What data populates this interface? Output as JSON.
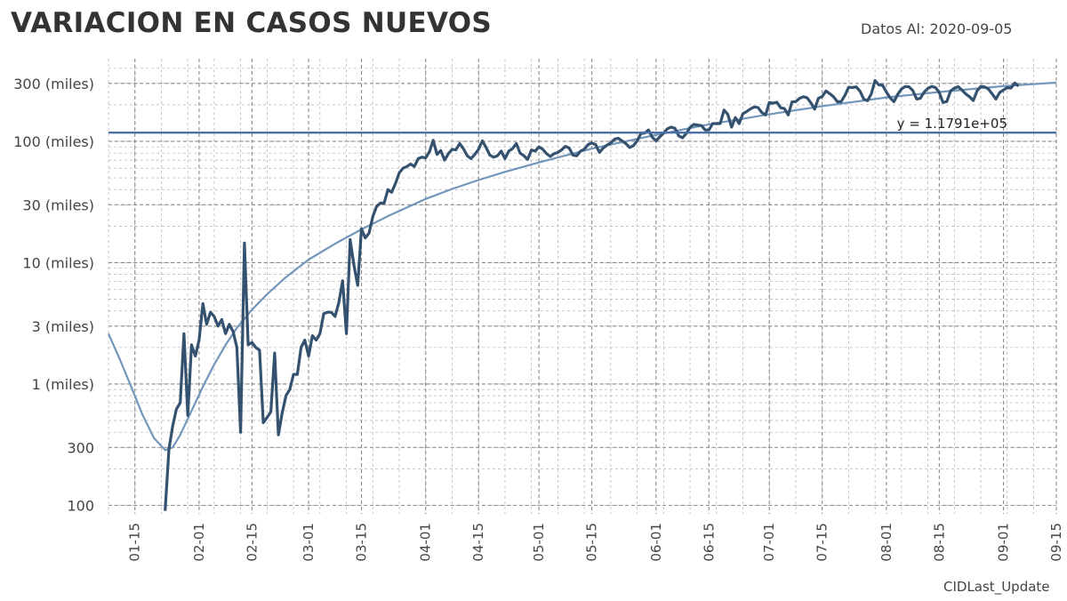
{
  "title": "VARIACION EN CASOS NUEVOS",
  "date_note": "Datos Al: 2020-09-05",
  "footer": "CIDLast_Update",
  "colors": {
    "series": "#34526f",
    "trend": "#7396bb",
    "hline": "#4a70a4",
    "grid": "#b0b0b0"
  },
  "chart_data": {
    "type": "line",
    "title": "VARIACION EN CASOS NUEVOS",
    "yscale": "log",
    "ylim": [
      85,
      480000
    ],
    "xlim": [
      "2020-01-08",
      "2020-09-15"
    ],
    "y_ticks": [
      {
        "value": 100,
        "label": "100"
      },
      {
        "value": 300,
        "label": "300"
      },
      {
        "value": 1000,
        "label": "1 (miles)"
      },
      {
        "value": 3000,
        "label": "3 (miles)"
      },
      {
        "value": 10000,
        "label": "10 (miles)"
      },
      {
        "value": 30000,
        "label": "30 (miles)"
      },
      {
        "value": 100000,
        "label": "100 (miles)"
      },
      {
        "value": 300000,
        "label": "300 (miles)"
      }
    ],
    "x_ticks": [
      "01-15",
      "02-01",
      "02-15",
      "03-01",
      "03-15",
      "04-01",
      "04-15",
      "05-01",
      "05-15",
      "06-01",
      "06-15",
      "07-01",
      "07-15",
      "08-01",
      "08-15",
      "09-01",
      "09-15"
    ],
    "x_tick_dates": [
      "2020-01-15",
      "2020-02-01",
      "2020-02-15",
      "2020-03-01",
      "2020-03-15",
      "2020-04-01",
      "2020-04-15",
      "2020-05-01",
      "2020-05-15",
      "2020-06-01",
      "2020-06-15",
      "2020-07-01",
      "2020-07-15",
      "2020-08-01",
      "2020-08-15",
      "2020-09-01",
      "2020-09-15"
    ],
    "hline": {
      "y": 117910,
      "label": "y = 1.1791e+05"
    },
    "series": [
      {
        "points": [
          [
            "2020-01-23",
            90
          ],
          [
            "2020-01-24",
            290
          ],
          [
            "2020-01-25",
            450
          ],
          [
            "2020-01-26",
            620
          ],
          [
            "2020-01-27",
            700
          ],
          [
            "2020-01-28",
            2600
          ],
          [
            "2020-01-29",
            550
          ],
          [
            "2020-01-30",
            2100
          ],
          [
            "2020-01-31",
            1700
          ],
          [
            "2020-02-01",
            2300
          ],
          [
            "2020-02-02",
            4600
          ],
          [
            "2020-02-03",
            3100
          ],
          [
            "2020-02-04",
            3900
          ],
          [
            "2020-02-05",
            3600
          ],
          [
            "2020-02-06",
            3000
          ],
          [
            "2020-02-07",
            3400
          ],
          [
            "2020-02-08",
            2600
          ],
          [
            "2020-02-09",
            3100
          ],
          [
            "2020-02-10",
            2700
          ],
          [
            "2020-02-11",
            2000
          ],
          [
            "2020-02-12",
            400
          ],
          [
            "2020-02-13",
            14500
          ],
          [
            "2020-02-14",
            2100
          ],
          [
            "2020-02-15",
            2200
          ],
          [
            "2020-02-16",
            2000
          ],
          [
            "2020-02-17",
            1900
          ],
          [
            "2020-02-18",
            480
          ],
          [
            "2020-02-19",
            530
          ],
          [
            "2020-02-20",
            590
          ],
          [
            "2020-02-21",
            1800
          ],
          [
            "2020-02-22",
            380
          ],
          [
            "2020-02-23",
            580
          ],
          [
            "2020-02-24",
            800
          ],
          [
            "2020-02-25",
            900
          ],
          [
            "2020-02-26",
            1200
          ],
          [
            "2020-02-27",
            1200
          ],
          [
            "2020-02-28",
            2000
          ],
          [
            "2020-02-29",
            2300
          ],
          [
            "2020-03-01",
            1700
          ],
          [
            "2020-03-02",
            2500
          ],
          [
            "2020-03-03",
            2300
          ],
          [
            "2020-03-04",
            2600
          ],
          [
            "2020-03-05",
            3800
          ],
          [
            "2020-03-06",
            3900
          ],
          [
            "2020-03-07",
            3900
          ],
          [
            "2020-03-08",
            3600
          ],
          [
            "2020-03-09",
            4700
          ],
          [
            "2020-03-10",
            7100
          ],
          [
            "2020-03-11",
            2600
          ],
          [
            "2020-03-12",
            15500
          ],
          [
            "2020-03-13",
            9500
          ],
          [
            "2020-03-14",
            6500
          ],
          [
            "2020-03-15",
            19000
          ],
          [
            "2020-03-16",
            16000
          ],
          [
            "2020-03-17",
            17500
          ],
          [
            "2020-03-18",
            24000
          ],
          [
            "2020-03-19",
            29000
          ],
          [
            "2020-03-20",
            31000
          ],
          [
            "2020-03-21",
            31000
          ],
          [
            "2020-03-22",
            40000
          ],
          [
            "2020-03-23",
            38000
          ],
          [
            "2020-03-24",
            45000
          ],
          [
            "2020-03-25",
            55000
          ],
          [
            "2020-03-26",
            60000
          ],
          [
            "2020-03-27",
            62000
          ],
          [
            "2020-03-28",
            65000
          ],
          [
            "2020-03-29",
            62000
          ],
          [
            "2020-03-30",
            72000
          ],
          [
            "2020-03-31",
            74000
          ],
          [
            "2020-04-01",
            73000
          ],
          [
            "2020-04-02",
            82000
          ],
          [
            "2020-04-03",
            102000
          ],
          [
            "2020-04-04",
            78000
          ],
          [
            "2020-04-05",
            84000
          ],
          [
            "2020-04-06",
            70000
          ],
          [
            "2020-04-07",
            79000
          ],
          [
            "2020-04-08",
            86000
          ],
          [
            "2020-04-09",
            85000
          ],
          [
            "2020-04-10",
            96000
          ],
          [
            "2020-04-11",
            87000
          ],
          [
            "2020-04-12",
            76000
          ],
          [
            "2020-04-13",
            72000
          ],
          [
            "2020-04-14",
            78000
          ],
          [
            "2020-04-15",
            86000
          ],
          [
            "2020-04-16",
            101000
          ],
          [
            "2020-04-17",
            89000
          ],
          [
            "2020-04-18",
            77000
          ],
          [
            "2020-04-19",
            74000
          ],
          [
            "2020-04-20",
            76000
          ],
          [
            "2020-04-21",
            83000
          ],
          [
            "2020-04-22",
            72000
          ],
          [
            "2020-04-23",
            83000
          ],
          [
            "2020-04-24",
            87000
          ],
          [
            "2020-04-25",
            96000
          ],
          [
            "2020-04-26",
            80000
          ],
          [
            "2020-04-27",
            76000
          ],
          [
            "2020-04-28",
            71000
          ],
          [
            "2020-04-29",
            85000
          ],
          [
            "2020-04-30",
            83000
          ],
          [
            "2020-05-01",
            90000
          ],
          [
            "2020-05-02",
            86000
          ],
          [
            "2020-05-03",
            79000
          ],
          [
            "2020-05-04",
            75000
          ],
          [
            "2020-05-05",
            79000
          ],
          [
            "2020-05-06",
            81000
          ],
          [
            "2020-05-07",
            85000
          ],
          [
            "2020-05-08",
            91000
          ],
          [
            "2020-05-09",
            88000
          ],
          [
            "2020-05-10",
            77000
          ],
          [
            "2020-05-11",
            76000
          ],
          [
            "2020-05-12",
            83000
          ],
          [
            "2020-05-13",
            86000
          ],
          [
            "2020-05-14",
            94000
          ],
          [
            "2020-05-15",
            97000
          ],
          [
            "2020-05-16",
            94000
          ],
          [
            "2020-05-17",
            81000
          ],
          [
            "2020-05-18",
            88000
          ],
          [
            "2020-05-19",
            93000
          ],
          [
            "2020-05-20",
            97000
          ],
          [
            "2020-05-21",
            104000
          ],
          [
            "2020-05-22",
            106000
          ],
          [
            "2020-05-23",
            101000
          ],
          [
            "2020-05-24",
            96000
          ],
          [
            "2020-05-25",
            89000
          ],
          [
            "2020-05-26",
            92000
          ],
          [
            "2020-05-27",
            101000
          ],
          [
            "2020-05-28",
            116000
          ],
          [
            "2020-05-29",
            117000
          ],
          [
            "2020-05-30",
            124000
          ],
          [
            "2020-05-31",
            108000
          ],
          [
            "2020-06-01",
            101000
          ],
          [
            "2020-06-02",
            109000
          ],
          [
            "2020-06-03",
            117000
          ],
          [
            "2020-06-04",
            127000
          ],
          [
            "2020-06-05",
            131000
          ],
          [
            "2020-06-06",
            128000
          ],
          [
            "2020-06-07",
            111000
          ],
          [
            "2020-06-08",
            107000
          ],
          [
            "2020-06-09",
            116000
          ],
          [
            "2020-06-10",
            130000
          ],
          [
            "2020-06-11",
            138000
          ],
          [
            "2020-06-12",
            136000
          ],
          [
            "2020-06-13",
            135000
          ],
          [
            "2020-06-14",
            124000
          ],
          [
            "2020-06-15",
            124000
          ],
          [
            "2020-06-16",
            140000
          ],
          [
            "2020-06-17",
            140000
          ],
          [
            "2020-06-18",
            140000
          ],
          [
            "2020-06-19",
            181000
          ],
          [
            "2020-06-20",
            167000
          ],
          [
            "2020-06-21",
            131000
          ],
          [
            "2020-06-22",
            157000
          ],
          [
            "2020-06-23",
            140000
          ],
          [
            "2020-06-24",
            169000
          ],
          [
            "2020-06-25",
            176000
          ],
          [
            "2020-06-26",
            185000
          ],
          [
            "2020-06-27",
            192000
          ],
          [
            "2020-06-28",
            190000
          ],
          [
            "2020-06-29",
            173000
          ],
          [
            "2020-06-30",
            165000
          ],
          [
            "2020-07-01",
            209000
          ],
          [
            "2020-07-02",
            206000
          ],
          [
            "2020-07-03",
            210000
          ],
          [
            "2020-07-04",
            189000
          ],
          [
            "2020-07-05",
            186000
          ],
          [
            "2020-07-06",
            165000
          ],
          [
            "2020-07-07",
            211000
          ],
          [
            "2020-07-08",
            213000
          ],
          [
            "2020-07-09",
            226000
          ],
          [
            "2020-07-10",
            233000
          ],
          [
            "2020-07-11",
            229000
          ],
          [
            "2020-07-12",
            208000
          ],
          [
            "2020-07-13",
            184000
          ],
          [
            "2020-07-14",
            226000
          ],
          [
            "2020-07-15",
            234000
          ],
          [
            "2020-07-16",
            260000
          ],
          [
            "2020-07-17",
            247000
          ],
          [
            "2020-07-18",
            233000
          ],
          [
            "2020-07-19",
            212000
          ],
          [
            "2020-07-20",
            212000
          ],
          [
            "2020-07-21",
            239000
          ],
          [
            "2020-07-22",
            279000
          ],
          [
            "2020-07-23",
            278000
          ],
          [
            "2020-07-24",
            281000
          ],
          [
            "2020-07-25",
            259000
          ],
          [
            "2020-07-26",
            223000
          ],
          [
            "2020-07-27",
            216000
          ],
          [
            "2020-07-28",
            246000
          ],
          [
            "2020-07-29",
            317000
          ],
          [
            "2020-07-30",
            292000
          ],
          [
            "2020-07-31",
            290000
          ],
          [
            "2020-08-01",
            255000
          ],
          [
            "2020-08-02",
            228000
          ],
          [
            "2020-08-03",
            212000
          ],
          [
            "2020-08-04",
            244000
          ],
          [
            "2020-08-05",
            270000
          ],
          [
            "2020-08-06",
            283000
          ],
          [
            "2020-08-07",
            281000
          ],
          [
            "2020-08-08",
            262000
          ],
          [
            "2020-08-09",
            223000
          ],
          [
            "2020-08-10",
            226000
          ],
          [
            "2020-08-11",
            255000
          ],
          [
            "2020-08-12",
            273000
          ],
          [
            "2020-08-13",
            283000
          ],
          [
            "2020-08-14",
            278000
          ],
          [
            "2020-08-15",
            253000
          ],
          [
            "2020-08-16",
            209000
          ],
          [
            "2020-08-17",
            213000
          ],
          [
            "2020-08-18",
            260000
          ],
          [
            "2020-08-19",
            274000
          ],
          [
            "2020-08-20",
            282000
          ],
          [
            "2020-08-21",
            265000
          ],
          [
            "2020-08-22",
            246000
          ],
          [
            "2020-08-23",
            233000
          ],
          [
            "2020-08-24",
            217000
          ],
          [
            "2020-08-25",
            260000
          ],
          [
            "2020-08-26",
            284000
          ],
          [
            "2020-08-27",
            281000
          ],
          [
            "2020-08-28",
            270000
          ],
          [
            "2020-08-29",
            246000
          ],
          [
            "2020-08-30",
            223000
          ],
          [
            "2020-08-31",
            253000
          ],
          [
            "2020-09-01",
            265000
          ],
          [
            "2020-09-02",
            277000
          ],
          [
            "2020-09-03",
            275000
          ],
          [
            "2020-09-04",
            303000
          ],
          [
            "2020-09-05",
            285000
          ]
        ]
      },
      {
        "points": [
          [
            "2020-01-08",
            2600
          ],
          [
            "2020-01-11",
            1600
          ],
          [
            "2020-01-14",
            950
          ],
          [
            "2020-01-17",
            560
          ],
          [
            "2020-01-20",
            360
          ],
          [
            "2020-01-23",
            285
          ],
          [
            "2020-01-25",
            300
          ],
          [
            "2020-01-27",
            380
          ],
          [
            "2020-01-30",
            600
          ],
          [
            "2020-02-02",
            950
          ],
          [
            "2020-02-05",
            1450
          ],
          [
            "2020-02-08",
            2100
          ],
          [
            "2020-02-11",
            2900
          ],
          [
            "2020-02-15",
            4100
          ],
          [
            "2020-02-19",
            5500
          ],
          [
            "2020-02-24",
            7600
          ],
          [
            "2020-03-01",
            10600
          ],
          [
            "2020-03-08",
            14300
          ],
          [
            "2020-03-15",
            18800
          ],
          [
            "2020-03-22",
            24200
          ],
          [
            "2020-04-01",
            33500
          ],
          [
            "2020-04-08",
            40500
          ],
          [
            "2020-04-15",
            48000
          ],
          [
            "2020-04-22",
            56000
          ],
          [
            "2020-05-01",
            67000
          ],
          [
            "2020-05-15",
            87000
          ],
          [
            "2020-06-01",
            113000
          ],
          [
            "2020-06-15",
            138000
          ],
          [
            "2020-07-01",
            167000
          ],
          [
            "2020-07-15",
            195000
          ],
          [
            "2020-08-01",
            230000
          ],
          [
            "2020-08-15",
            255000
          ],
          [
            "2020-09-01",
            285000
          ],
          [
            "2020-09-15",
            305000
          ]
        ]
      }
    ]
  }
}
